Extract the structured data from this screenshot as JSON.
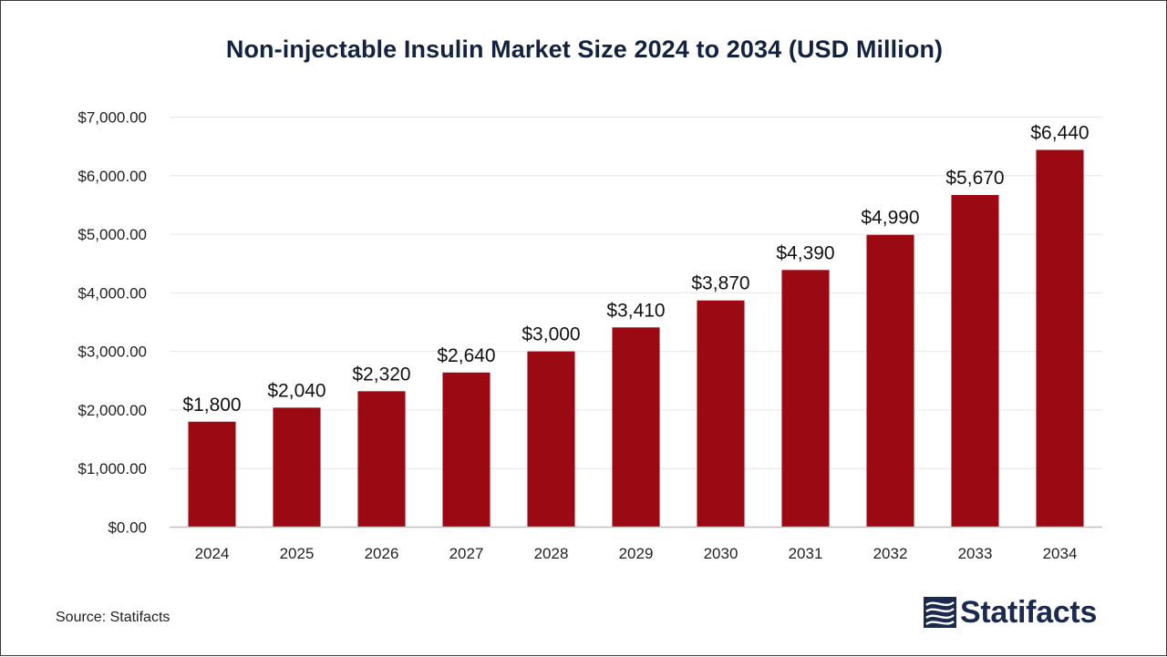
{
  "chart_data": {
    "type": "bar",
    "title": "Non-injectable Insulin Market Size 2024 to 2034 (USD Million)",
    "xlabel": "",
    "ylabel": "",
    "categories": [
      "2024",
      "2025",
      "2026",
      "2027",
      "2028",
      "2029",
      "2030",
      "2031",
      "2032",
      "2033",
      "2034"
    ],
    "values": [
      1800,
      2040,
      2320,
      2640,
      3000,
      3410,
      3870,
      4390,
      4990,
      5670,
      6440
    ],
    "data_labels": [
      "$1,800",
      "$2,040",
      "$2,320",
      "$2,640",
      "$3,000",
      "$3,410",
      "$3,870",
      "$4,390",
      "$4,990",
      "$5,670",
      "$6,440"
    ],
    "ylim": [
      0,
      7000
    ],
    "yticks": [
      0,
      1000,
      2000,
      3000,
      4000,
      5000,
      6000,
      7000
    ],
    "ytick_labels": [
      "$0.00",
      "$1,000.00",
      "$2,000.00",
      "$3,000.00",
      "$4,000.00",
      "$5,000.00",
      "$6,000.00",
      "$7,000.00"
    ],
    "grid": true,
    "legend": "none",
    "bar_color": "#9b0a12"
  },
  "footer": {
    "source": "Source: Statifacts",
    "logo_text": "Statifacts",
    "logo_color": "#1c2a4f"
  }
}
